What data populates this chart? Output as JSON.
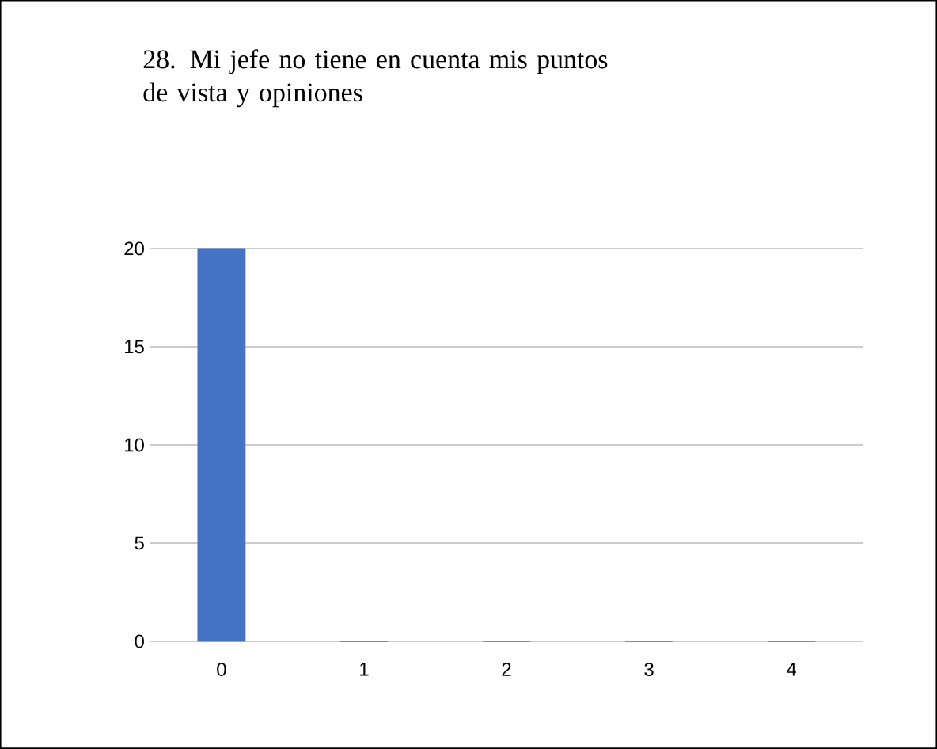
{
  "chart_data": {
    "type": "bar",
    "title": "28. Mi jefe no tiene en cuenta mis puntos de vista y opiniones",
    "categories": [
      "0",
      "1",
      "2",
      "3",
      "4"
    ],
    "values": [
      20,
      0,
      0,
      0,
      0
    ],
    "color": "#4472c4",
    "ylim": [
      0,
      20
    ],
    "yticks": [
      0,
      5,
      10,
      15,
      20
    ],
    "grid": "y"
  }
}
